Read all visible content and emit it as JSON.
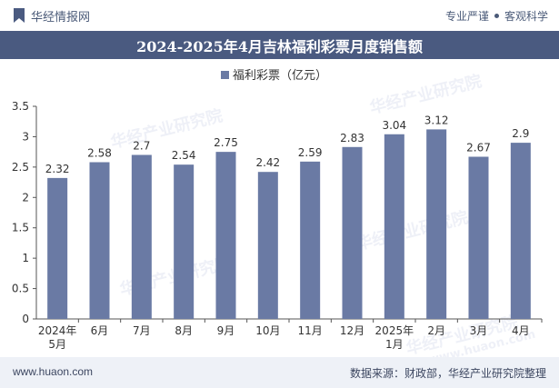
{
  "header": {
    "brand": "华经情报网",
    "tagline_left": "专业严谨",
    "tagline_right": "客观科学"
  },
  "chart_data": {
    "type": "bar",
    "title": "2024-2025年4月吉林福利彩票月度销售额",
    "categories": [
      "2024年\n5月",
      "6月",
      "7月",
      "8月",
      "9月",
      "10月",
      "11月",
      "12月",
      "2025年\n1月",
      "2月",
      "3月",
      "4月"
    ],
    "series": [
      {
        "name": "福利彩票（亿元）",
        "values": [
          2.32,
          2.58,
          2.7,
          2.54,
          2.75,
          2.42,
          2.59,
          2.83,
          3.04,
          3.12,
          2.67,
          2.9
        ]
      }
    ],
    "value_labels": [
      "2.32",
      "2.58",
      "2.7",
      "2.54",
      "2.75",
      "2.42",
      "2.59",
      "2.83",
      "3.04",
      "3.12",
      "2.67",
      "2.9"
    ],
    "ylim": [
      0,
      3.5
    ],
    "yticks": [
      "0",
      "0.5",
      "1",
      "1.5",
      "2",
      "2.5",
      "3",
      "3.5"
    ],
    "grid": false,
    "legend": "top-center",
    "bar_color": "#6a7aa4"
  },
  "footer": {
    "website": "www.huaon.com",
    "source": "数据来源：财政部，华经产业研究院整理"
  },
  "watermark": {
    "text": "华经产业研究院",
    "url_text": "www.huaon.com"
  }
}
